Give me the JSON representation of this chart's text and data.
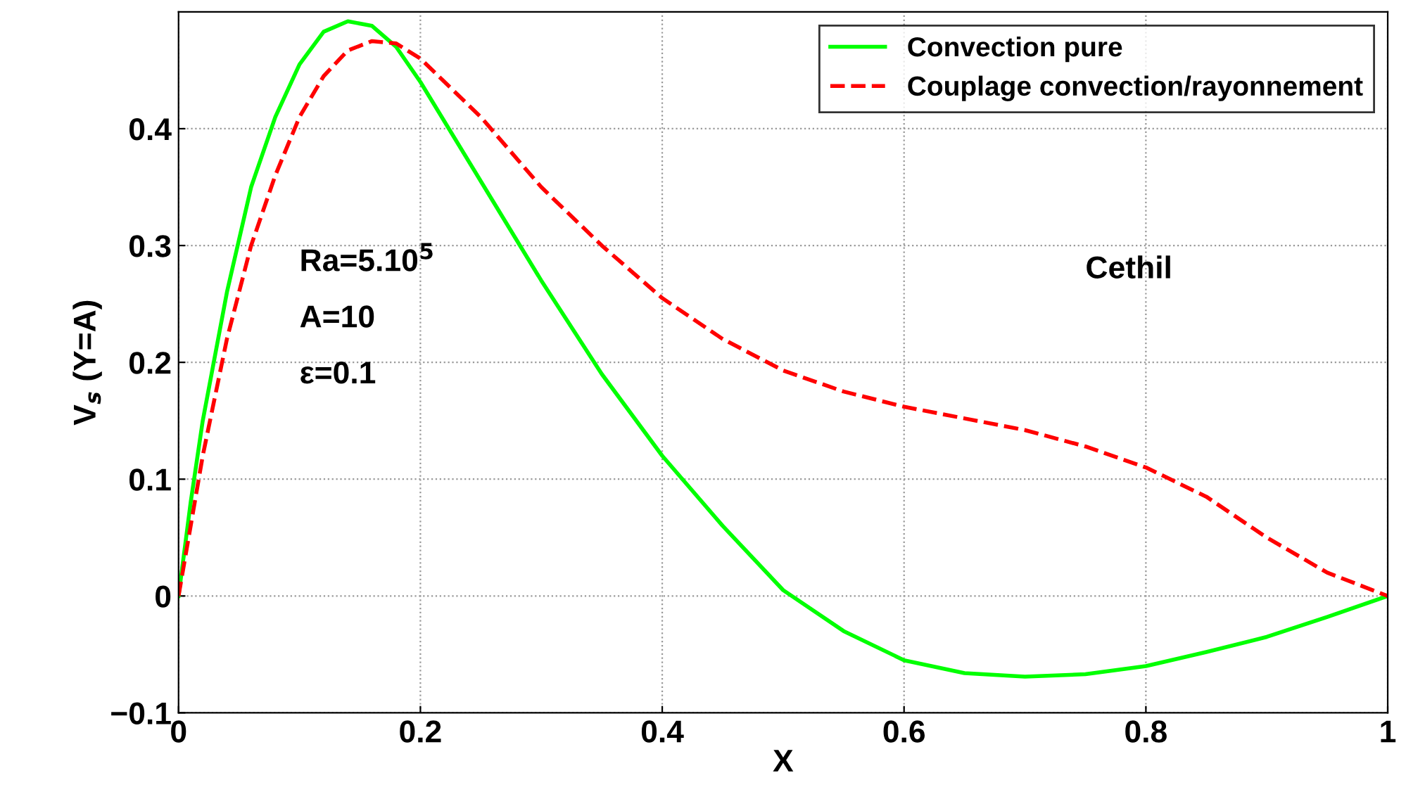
{
  "chart_data": {
    "type": "line",
    "xlabel": "X",
    "ylabel": "V$_{s}$ (Y=A)",
    "xlim": [
      0,
      1
    ],
    "ylim": [
      -0.1,
      0.5
    ],
    "xticks": [
      0,
      0.2,
      0.4,
      0.6,
      0.8,
      1
    ],
    "yticks": [
      {
        "value": -0.1,
        "label": "−0.1"
      },
      0,
      0.1,
      0.2,
      0.3,
      0.4
    ],
    "grid": true,
    "legend": "top right",
    "series": [
      {
        "name": "Convection pure",
        "color": "#00ff00",
        "line_style": "solid",
        "x": [
          0,
          0.01,
          0.02,
          0.04,
          0.06,
          0.08,
          0.1,
          0.12,
          0.14,
          0.16,
          0.18,
          0.2,
          0.25,
          0.3,
          0.35,
          0.4,
          0.45,
          0.5,
          0.55,
          0.6,
          0.65,
          0.7,
          0.75,
          0.8,
          0.85,
          0.9,
          0.95,
          1
        ],
        "values": [
          0,
          0.08,
          0.15,
          0.26,
          0.35,
          0.41,
          0.455,
          0.483,
          0.492,
          0.488,
          0.47,
          0.44,
          0.355,
          0.27,
          0.19,
          0.12,
          0.06,
          0.005,
          -0.03,
          -0.055,
          -0.066,
          -0.069,
          -0.067,
          -0.06,
          -0.048,
          -0.035,
          -0.018,
          0
        ]
      },
      {
        "name": "Couplage convection/rayonnement",
        "color": "#ff0000",
        "line_style": "dashed",
        "x": [
          0,
          0.01,
          0.02,
          0.04,
          0.06,
          0.08,
          0.1,
          0.12,
          0.14,
          0.16,
          0.18,
          0.2,
          0.25,
          0.3,
          0.35,
          0.4,
          0.45,
          0.5,
          0.55,
          0.6,
          0.65,
          0.7,
          0.75,
          0.8,
          0.85,
          0.9,
          0.95,
          1
        ],
        "values": [
          0,
          0.06,
          0.12,
          0.22,
          0.3,
          0.36,
          0.41,
          0.445,
          0.467,
          0.475,
          0.473,
          0.46,
          0.41,
          0.35,
          0.3,
          0.255,
          0.22,
          0.193,
          0.175,
          0.162,
          0.152,
          0.142,
          0.128,
          0.11,
          0.085,
          0.05,
          0.02,
          0
        ]
      }
    ],
    "annotations": [
      "Ra=5.10$^{5}$",
      "A=10",
      "ε=0.1",
      "Cethil"
    ]
  }
}
